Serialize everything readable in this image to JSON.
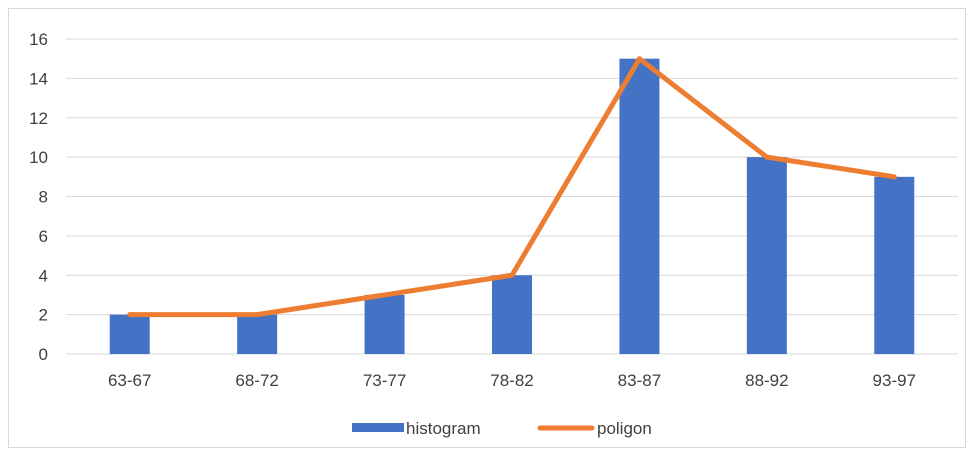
{
  "chart_data": {
    "type": "bar+line",
    "categories": [
      "63-67",
      "68-72",
      "73-77",
      "78-82",
      "83-87",
      "88-92",
      "93-97"
    ],
    "series": [
      {
        "name": "histogram",
        "type": "bar",
        "values": [
          2,
          2,
          3,
          4,
          15,
          10,
          9
        ]
      },
      {
        "name": "poligon",
        "type": "line",
        "values": [
          2,
          2,
          3,
          4,
          15,
          10,
          9
        ]
      }
    ],
    "ylim": [
      0,
      16
    ],
    "yticks": [
      0,
      2,
      4,
      6,
      8,
      10,
      12,
      14,
      16
    ],
    "ytick_labels": [
      "0",
      "2",
      "4",
      "6",
      "8",
      "10",
      "12",
      "14",
      "16"
    ],
    "grid": true,
    "legend_position": "bottom",
    "colors": {
      "histogram": "#4472C4",
      "poligon": "#ED7D31",
      "grid": "#d9d9d9"
    }
  }
}
